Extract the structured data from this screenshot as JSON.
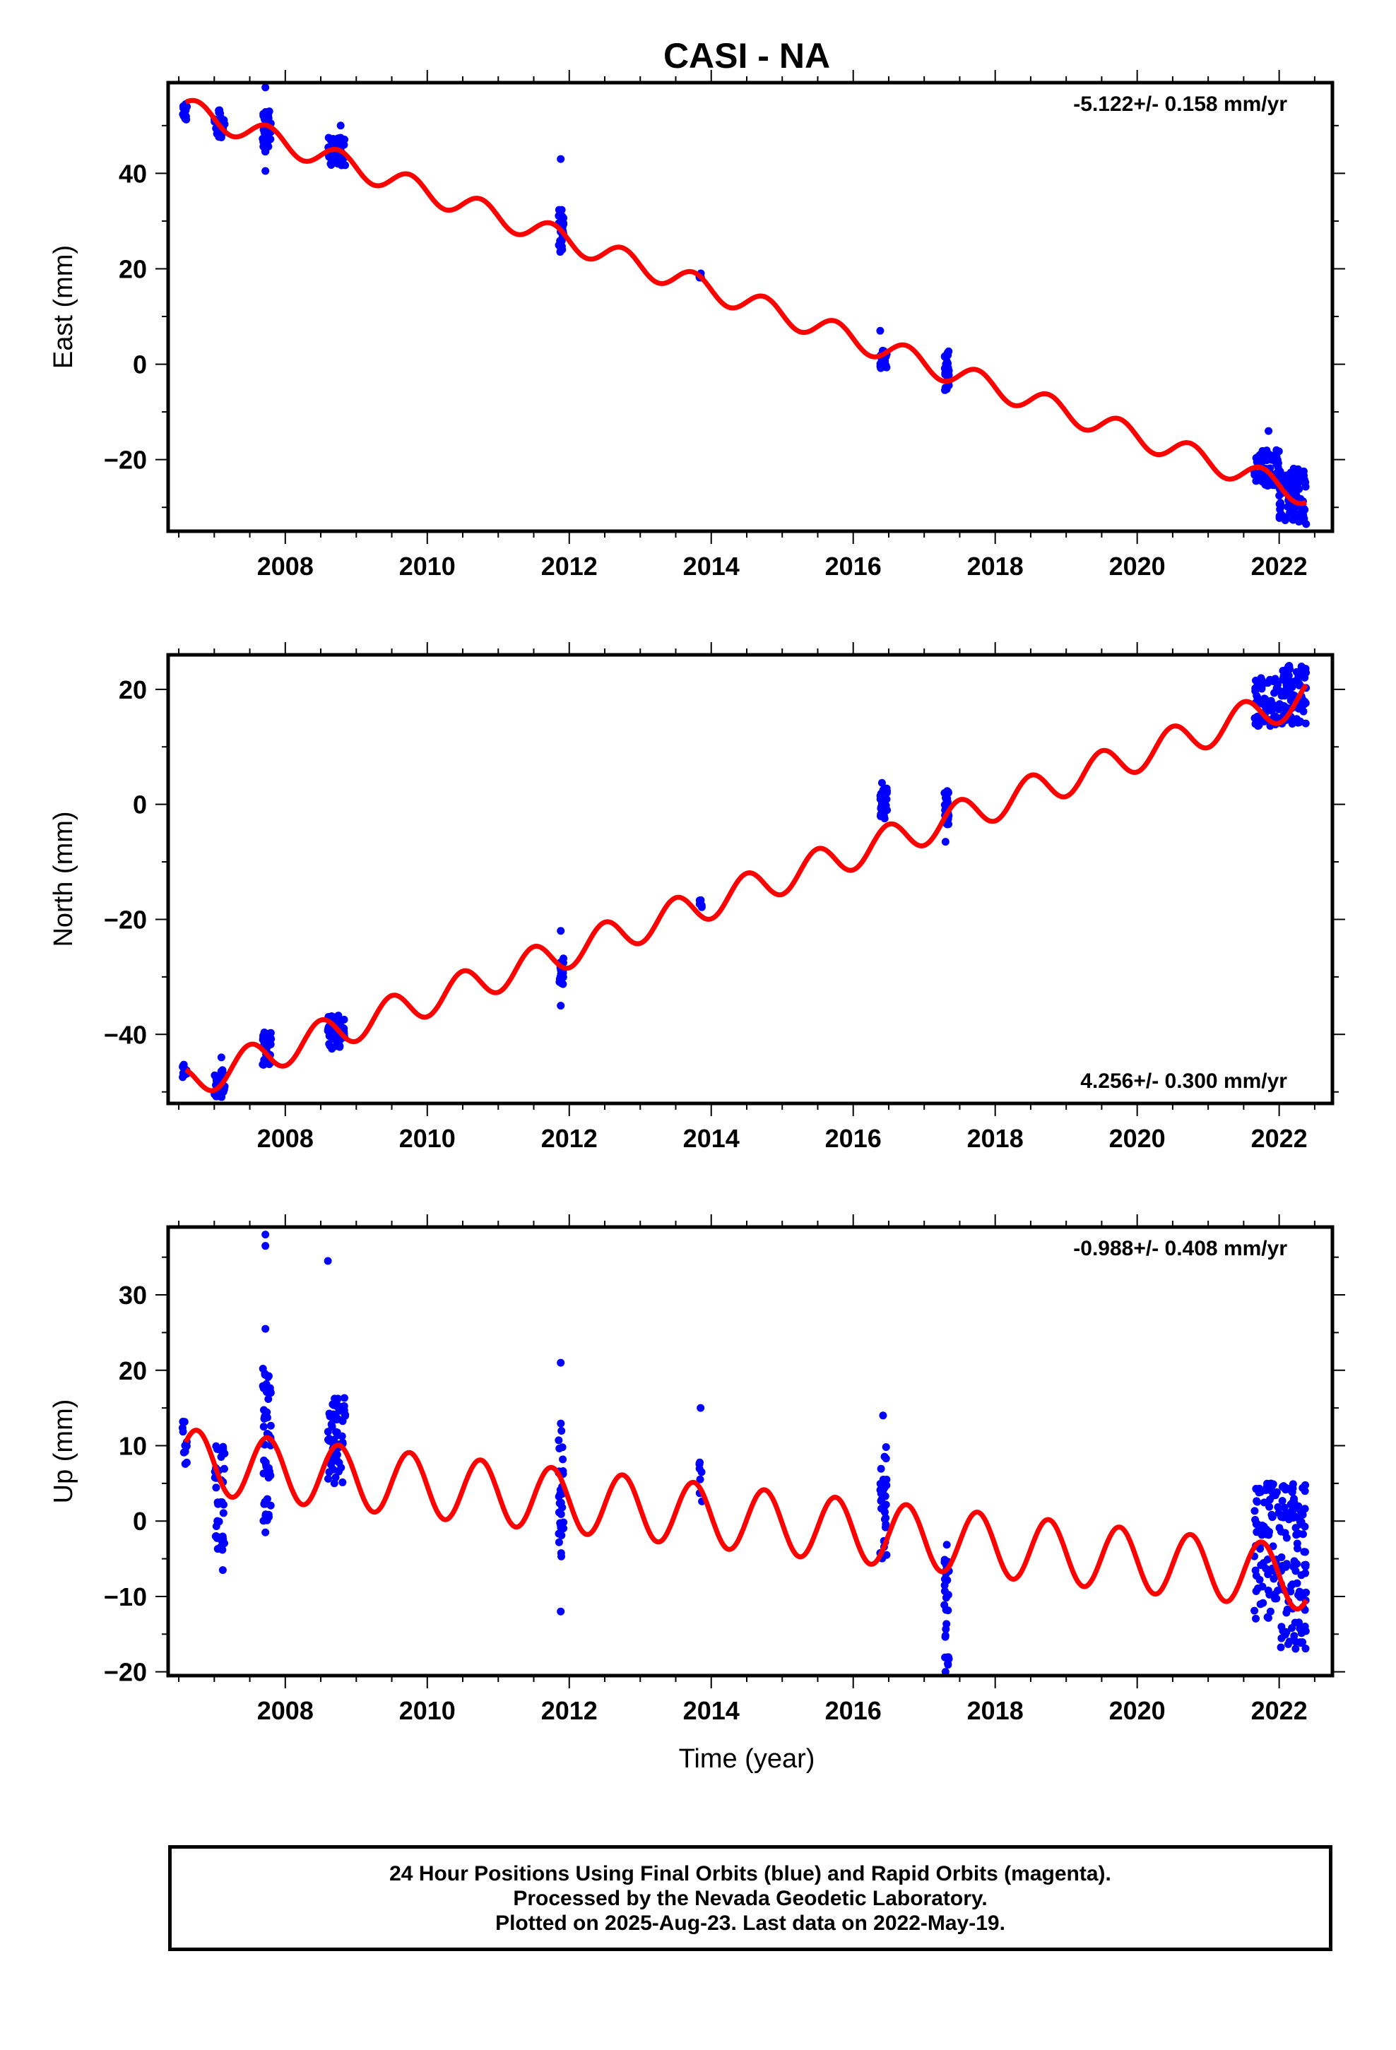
{
  "title": "CASI - NA",
  "xlabel": "Time (year)",
  "colors": {
    "data_points": "#0000ff",
    "model_curve": "#ff0000",
    "frame": "#000000"
  },
  "footer": {
    "line1": "24 Hour Positions Using Final Orbits (blue) and Rapid Orbits (magenta).",
    "line2": "Processed by the Nevada Geodetic Laboratory.",
    "line3": "Plotted on 2025-Aug-23. Last data on 2022-May-19."
  },
  "chart_data": [
    {
      "type": "scatter",
      "ylabel": "East (mm)",
      "rate_label": "-5.122+/- 0.158 mm/yr",
      "rate_label_position": "top-right",
      "xlim": [
        2006.35,
        2022.75
      ],
      "ylim": [
        -35,
        59
      ],
      "xticks": [
        2008,
        2010,
        2012,
        2014,
        2016,
        2018,
        2020,
        2022
      ],
      "yticks": [
        -20,
        0,
        20,
        40
      ],
      "model": {
        "name": "model",
        "start": 2006.6,
        "end": 2022.38,
        "intercept_2006_6": 53.5,
        "rate_mm_yr": -5.122,
        "annual_amplitude": 2.4,
        "annual_phase_peak": 0.75
      },
      "clusters": [
        {
          "t0": 2006.55,
          "t1": 2006.62,
          "ymin": 50.5,
          "ymax": 54.5,
          "n": 14
        },
        {
          "t0": 2007.0,
          "t1": 2007.15,
          "ymin": 47.5,
          "ymax": 53.5,
          "n": 30
        },
        {
          "t0": 2007.68,
          "t1": 2007.8,
          "ymin": 44.5,
          "ymax": 53.0,
          "n": 45
        },
        {
          "t0": 2008.6,
          "t1": 2008.85,
          "ymin": 41.5,
          "ymax": 47.5,
          "n": 60
        },
        {
          "t0": 2011.85,
          "t1": 2011.92,
          "ymin": 23.5,
          "ymax": 32.5,
          "n": 30
        },
        {
          "t0": 2013.83,
          "t1": 2013.87,
          "ymin": 18.0,
          "ymax": 19.8,
          "n": 6
        },
        {
          "t0": 2016.38,
          "t1": 2016.48,
          "ymin": -1.0,
          "ymax": 3.0,
          "n": 20
        },
        {
          "t0": 2017.28,
          "t1": 2017.35,
          "ymin": -5.5,
          "ymax": 3.0,
          "n": 30
        },
        {
          "t0": 2021.65,
          "t1": 2022.0,
          "ymin": -25.5,
          "ymax": -18.0,
          "n": 70
        },
        {
          "t0": 2022.0,
          "t1": 2022.38,
          "ymin": -33.0,
          "ymax": -21.5,
          "n": 90
        }
      ],
      "outliers": [
        [
          2007.72,
          58.0
        ],
        [
          2007.72,
          40.5
        ],
        [
          2008.78,
          50.0
        ],
        [
          2011.88,
          43.0
        ],
        [
          2016.38,
          7.0
        ],
        [
          2021.85,
          -14.0
        ],
        [
          2022.38,
          -33.5
        ]
      ]
    },
    {
      "type": "scatter",
      "ylabel": "North (mm)",
      "rate_label": "4.256+/- 0.300 mm/yr",
      "rate_label_position": "bottom-right",
      "xlim": [
        2006.35,
        2022.75
      ],
      "ylim": [
        -52,
        26
      ],
      "xticks": [
        2008,
        2010,
        2012,
        2014,
        2016,
        2018,
        2020,
        2022
      ],
      "yticks": [
        -40,
        -20,
        0,
        20
      ],
      "model": {
        "name": "model",
        "start": 2006.6,
        "end": 2022.38,
        "intercept_2006_6": -48.5,
        "rate_mm_yr": 4.256,
        "annual_amplitude": 2.9,
        "annual_phase_peak": 0.5
      },
      "clusters": [
        {
          "t0": 2006.55,
          "t1": 2006.62,
          "ymin": -47.5,
          "ymax": -45.0,
          "n": 12
        },
        {
          "t0": 2007.0,
          "t1": 2007.15,
          "ymin": -51.0,
          "ymax": -46.0,
          "n": 30
        },
        {
          "t0": 2007.68,
          "t1": 2007.8,
          "ymin": -45.5,
          "ymax": -39.5,
          "n": 40
        },
        {
          "t0": 2008.6,
          "t1": 2008.85,
          "ymin": -42.5,
          "ymax": -36.5,
          "n": 55
        },
        {
          "t0": 2011.85,
          "t1": 2011.92,
          "ymin": -31.5,
          "ymax": -26.5,
          "n": 25
        },
        {
          "t0": 2013.83,
          "t1": 2013.87,
          "ymin": -18.0,
          "ymax": -16.5,
          "n": 6
        },
        {
          "t0": 2016.38,
          "t1": 2016.48,
          "ymin": -2.5,
          "ymax": 4.0,
          "n": 22
        },
        {
          "t0": 2017.28,
          "t1": 2017.35,
          "ymin": -3.5,
          "ymax": 2.5,
          "n": 28
        },
        {
          "t0": 2021.65,
          "t1": 2022.0,
          "ymin": 13.5,
          "ymax": 22.0,
          "n": 70
        },
        {
          "t0": 2022.0,
          "t1": 2022.38,
          "ymin": 14.0,
          "ymax": 25.0,
          "n": 90
        }
      ],
      "outliers": [
        [
          2007.1,
          -44.0
        ],
        [
          2011.88,
          -22.0
        ],
        [
          2011.88,
          -35.0
        ],
        [
          2017.3,
          -6.5
        ]
      ]
    },
    {
      "type": "scatter",
      "ylabel": "Up (mm)",
      "rate_label": "-0.988+/- 0.408 mm/yr",
      "rate_label_position": "top-right",
      "xlim": [
        2006.35,
        2022.75
      ],
      "ylim": [
        -20.5,
        39
      ],
      "xticks": [
        2008,
        2010,
        2012,
        2014,
        2016,
        2018,
        2020,
        2022
      ],
      "yticks": [
        -20,
        -10,
        0,
        10,
        20,
        30
      ],
      "model": {
        "name": "model",
        "start": 2006.6,
        "end": 2022.38,
        "intercept_2006_6": 8.0,
        "rate_mm_yr": -0.988,
        "annual_amplitude": 4.2,
        "annual_phase_peak": 0.75
      },
      "clusters": [
        {
          "t0": 2006.55,
          "t1": 2006.62,
          "ymin": 7.5,
          "ymax": 14.0,
          "n": 12
        },
        {
          "t0": 2007.0,
          "t1": 2007.15,
          "ymin": -4.0,
          "ymax": 10.0,
          "n": 40
        },
        {
          "t0": 2007.68,
          "t1": 2007.8,
          "ymin": 0.0,
          "ymax": 20.5,
          "n": 50
        },
        {
          "t0": 2008.6,
          "t1": 2008.85,
          "ymin": 4.5,
          "ymax": 17.0,
          "n": 60
        },
        {
          "t0": 2011.85,
          "t1": 2011.92,
          "ymin": -5.0,
          "ymax": 13.0,
          "n": 30
        },
        {
          "t0": 2013.83,
          "t1": 2013.87,
          "ymin": 2.0,
          "ymax": 8.5,
          "n": 8
        },
        {
          "t0": 2016.38,
          "t1": 2016.48,
          "ymin": -6.5,
          "ymax": 10.5,
          "n": 35
        },
        {
          "t0": 2017.28,
          "t1": 2017.35,
          "ymin": -19.5,
          "ymax": -3.0,
          "n": 30
        },
        {
          "t0": 2021.65,
          "t1": 2022.0,
          "ymin": -13.0,
          "ymax": 5.0,
          "n": 80
        },
        {
          "t0": 2022.0,
          "t1": 2022.38,
          "ymin": -17.0,
          "ymax": 5.0,
          "n": 110
        }
      ],
      "outliers": [
        [
          2007.72,
          38.0
        ],
        [
          2007.72,
          36.5
        ],
        [
          2007.72,
          25.5
        ],
        [
          2007.72,
          -1.5
        ],
        [
          2008.6,
          34.5
        ],
        [
          2011.88,
          21.0
        ],
        [
          2011.88,
          -12.0
        ],
        [
          2007.12,
          -6.5
        ],
        [
          2013.85,
          15.0
        ],
        [
          2016.42,
          14.0
        ],
        [
          2017.3,
          -20.0
        ]
      ]
    }
  ]
}
